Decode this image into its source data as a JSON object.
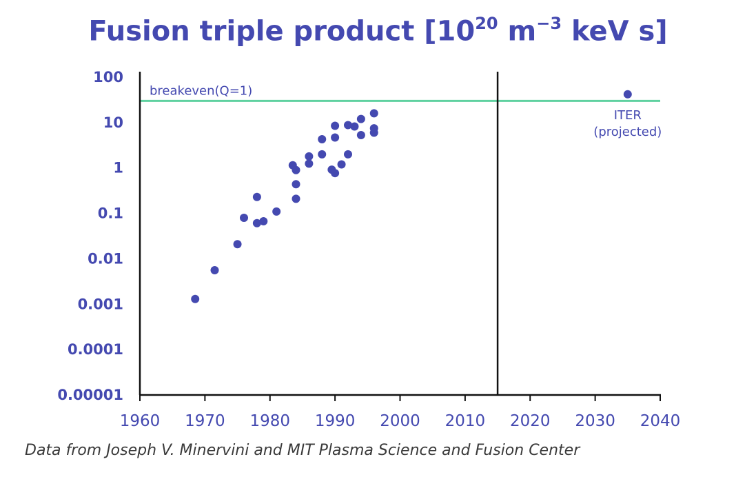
{
  "title": {
    "prefix": "Fusion triple product [10",
    "exp1": "20",
    "middle": " m",
    "exp2": "−3",
    "suffix": " keV s]"
  },
  "caption": "Data from Joseph V. Minervini and MIT Plasma Science and Fusion Center",
  "colors": {
    "accent": "#4449b0",
    "breakeven_line": "#5fd1a0",
    "axis": "#111111"
  },
  "chart_data": {
    "type": "scatter",
    "title": "Fusion triple product [10^20 m^-3 keV s]",
    "xlabel": "",
    "ylabel": "",
    "log_y": true,
    "xlim": [
      1960,
      2040
    ],
    "ylim": [
      1e-05,
      100
    ],
    "grid": false,
    "x_ticks": [
      {
        "value": 1960,
        "label": "1960"
      },
      {
        "value": 1970,
        "label": "1970"
      },
      {
        "value": 1980,
        "label": "1980"
      },
      {
        "value": 1990,
        "label": "1990"
      },
      {
        "value": 2000,
        "label": "2000"
      },
      {
        "value": 2010,
        "label": "2010"
      },
      {
        "value": 2020,
        "label": "2020"
      },
      {
        "value": 2030,
        "label": "2030"
      },
      {
        "value": 2040,
        "label": "2040"
      }
    ],
    "y_ticks": [
      {
        "value": 100,
        "label": "100"
      },
      {
        "value": 10,
        "label": "10"
      },
      {
        "value": 1,
        "label": "1"
      },
      {
        "value": 0.1,
        "label": "0.1"
      },
      {
        "value": 0.01,
        "label": "0.01"
      },
      {
        "value": 0.001,
        "label": "0.001"
      },
      {
        "value": 0.0001,
        "label": "0.0001"
      },
      {
        "value": 1e-05,
        "label": "0.00001"
      }
    ],
    "breakeven": {
      "value": 30,
      "label": "breakeven(Q=1)"
    },
    "vertical_marker": {
      "x": 2015
    },
    "points": [
      {
        "x": 1968.5,
        "y": 0.0013
      },
      {
        "x": 1971.5,
        "y": 0.0056
      },
      {
        "x": 1975,
        "y": 0.021
      },
      {
        "x": 1976,
        "y": 0.08
      },
      {
        "x": 1978,
        "y": 0.23
      },
      {
        "x": 1978,
        "y": 0.061
      },
      {
        "x": 1979,
        "y": 0.067
      },
      {
        "x": 1981,
        "y": 0.11
      },
      {
        "x": 1983.5,
        "y": 1.15
      },
      {
        "x": 1984,
        "y": 0.9
      },
      {
        "x": 1984,
        "y": 0.44
      },
      {
        "x": 1984,
        "y": 0.21
      },
      {
        "x": 1986,
        "y": 1.8
      },
      {
        "x": 1986,
        "y": 1.25
      },
      {
        "x": 1988,
        "y": 4.3
      },
      {
        "x": 1988,
        "y": 2.0
      },
      {
        "x": 1989.5,
        "y": 0.92
      },
      {
        "x": 1990,
        "y": 8.5
      },
      {
        "x": 1990,
        "y": 4.7
      },
      {
        "x": 1990,
        "y": 0.77
      },
      {
        "x": 1991,
        "y": 1.2
      },
      {
        "x": 1992,
        "y": 8.8
      },
      {
        "x": 1992,
        "y": 2.0
      },
      {
        "x": 1993,
        "y": 8.2
      },
      {
        "x": 1994,
        "y": 12
      },
      {
        "x": 1994,
        "y": 5.3
      },
      {
        "x": 1996,
        "y": 16
      },
      {
        "x": 1996,
        "y": 7.5
      },
      {
        "x": 1996,
        "y": 6.0
      },
      {
        "x": 2035,
        "y": 42
      }
    ],
    "annotations": [
      {
        "text": "ITER",
        "x": 2035
      },
      {
        "text": "(projected)",
        "x": 2035
      }
    ]
  }
}
